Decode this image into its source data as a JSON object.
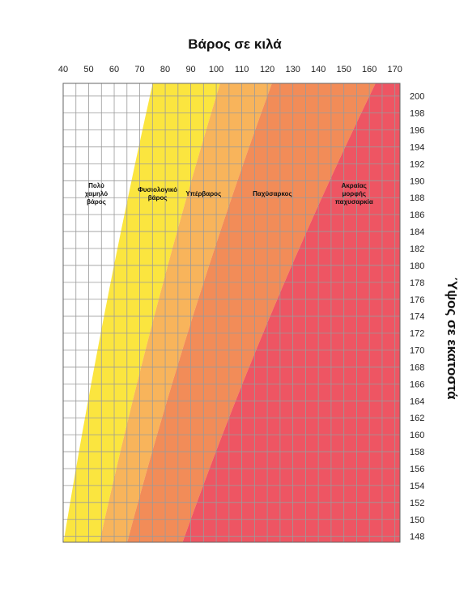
{
  "chart_data": {
    "type": "area",
    "title": "Βάρος σε κιλά",
    "xlabel": "Βάρος σε κιλά",
    "ylabel": "Ύψος σε εκατοστά",
    "x_axis_position": "top",
    "y_axis_position": "right",
    "xlim": [
      40,
      172
    ],
    "ylim": [
      147.3,
      201.5
    ],
    "x_ticks": [
      40,
      50,
      60,
      70,
      80,
      90,
      100,
      110,
      120,
      130,
      140,
      150,
      160,
      170
    ],
    "y_ticks": [
      148,
      150,
      152,
      154,
      156,
      158,
      160,
      162,
      164,
      166,
      168,
      170,
      172,
      174,
      176,
      178,
      180,
      182,
      184,
      186,
      188,
      190,
      192,
      194,
      196,
      198,
      200
    ],
    "grid": true,
    "bmi_thresholds": [
      18.5,
      25,
      30,
      40
    ],
    "categories": [
      {
        "lines": [
          "Πολύ",
          "χαμηλό",
          "βάρος"
        ],
        "color": "#ffffff",
        "label_x": 53,
        "label_y": 188.5
      },
      {
        "lines": [
          "Φυσιολογικό",
          "βάρος"
        ],
        "color": "#fbe53f",
        "label_x": 77,
        "label_y": 188.5
      },
      {
        "lines": [
          "Υπέρβαρος"
        ],
        "color": "#f8b45b",
        "label_x": 95,
        "label_y": 188.5
      },
      {
        "lines": [
          "Παχύσαρκος"
        ],
        "color": "#f28c58",
        "label_x": 122,
        "label_y": 188.5
      },
      {
        "lines": [
          "Ακραίας",
          "μορφής",
          "παχυσαρκία"
        ],
        "color": "#ee5563",
        "label_x": 154,
        "label_y": 188.5
      }
    ]
  }
}
